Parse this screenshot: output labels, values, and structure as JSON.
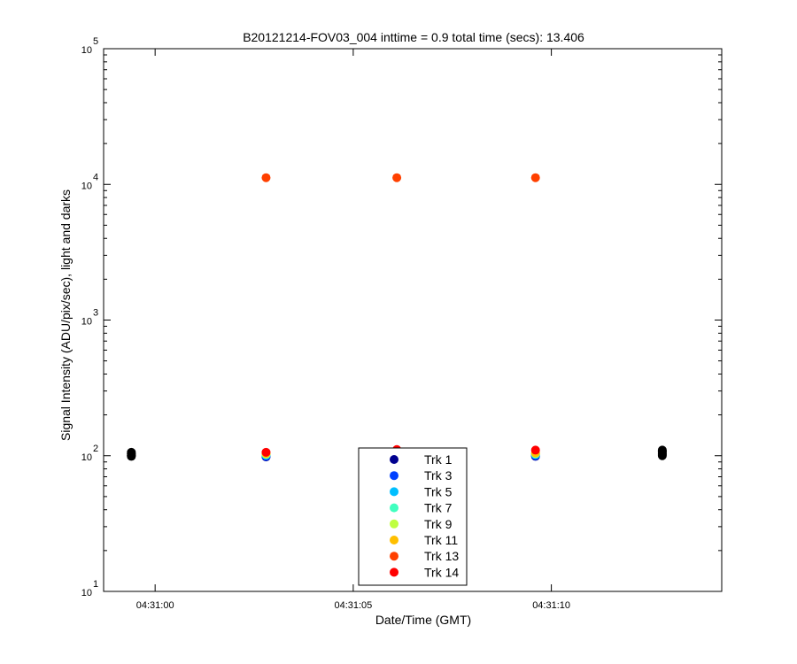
{
  "chart_data": {
    "type": "scatter",
    "title": "B20121214-FOV03_004 inttime = 0.9 total time (secs): 13.406",
    "xlabel": "Date/Time (GMT)",
    "ylabel": "Signal Intensity (ADU/pix/sec), light and darks",
    "y_scale": "log",
    "ylim": [
      10,
      100000
    ],
    "y_ticks": [
      {
        "value": 10,
        "base": "10",
        "exp": "1"
      },
      {
        "value": 100,
        "base": "10",
        "exp": "2"
      },
      {
        "value": 1000,
        "base": "10",
        "exp": "3"
      },
      {
        "value": 10000,
        "base": "10",
        "exp": "4"
      },
      {
        "value": 100000,
        "base": "10",
        "exp": "5"
      }
    ],
    "xlim": [
      "04:30:58.7",
      "04:31:14.3"
    ],
    "x_ticks": [
      "04:31:00",
      "04:31:05",
      "04:31:10"
    ],
    "grid": false,
    "legend_position": "bottom-center",
    "series": [
      {
        "name": "Trk 1",
        "color": "#00008F",
        "points": [
          {
            "x": "04:31:02.8",
            "y": 98
          },
          {
            "x": "04:31:06.1",
            "y": 108
          },
          {
            "x": "04:31:09.6",
            "y": 99
          }
        ]
      },
      {
        "name": "Trk 3",
        "color": "#0040FF",
        "points": [
          {
            "x": "04:31:02.8",
            "y": 99
          },
          {
            "x": "04:31:06.1",
            "y": 108
          },
          {
            "x": "04:31:09.6",
            "y": 100
          }
        ]
      },
      {
        "name": "Trk 5",
        "color": "#00BFFF",
        "points": [
          {
            "x": "04:31:02.8",
            "y": 101
          },
          {
            "x": "04:31:06.1",
            "y": 109
          },
          {
            "x": "04:31:09.6",
            "y": 102
          }
        ]
      },
      {
        "name": "Trk 7",
        "color": "#40FFBF",
        "points": [
          {
            "x": "04:31:02.8",
            "y": 102
          },
          {
            "x": "04:31:06.1",
            "y": 109
          },
          {
            "x": "04:31:09.6",
            "y": 103
          }
        ]
      },
      {
        "name": "Trk 9",
        "color": "#BFFF40",
        "points": [
          {
            "x": "04:31:02.8",
            "y": 103
          },
          {
            "x": "04:31:06.1",
            "y": 110
          },
          {
            "x": "04:31:09.6",
            "y": 104
          }
        ]
      },
      {
        "name": "Trk 11",
        "color": "#FFBF00",
        "points": [
          {
            "x": "04:31:02.8",
            "y": 104
          },
          {
            "x": "04:31:06.1",
            "y": 110
          },
          {
            "x": "04:31:09.6",
            "y": 105
          }
        ]
      },
      {
        "name": "Trk 13",
        "color": "#FF4000",
        "points": [
          {
            "x": "04:31:02.8",
            "y": 11200
          },
          {
            "x": "04:31:06.1",
            "y": 11200
          },
          {
            "x": "04:31:09.6",
            "y": 11200
          }
        ]
      },
      {
        "name": "Trk 14",
        "color": "#FF0000",
        "points": [
          {
            "x": "04:31:02.8",
            "y": 106
          },
          {
            "x": "04:31:06.1",
            "y": 111
          },
          {
            "x": "04:31:09.6",
            "y": 110
          }
        ]
      }
    ],
    "dark_points": {
      "color": "#000000",
      "points": [
        {
          "x": "04:30:59.4",
          "y": 99
        },
        {
          "x": "04:30:59.4",
          "y": 100
        },
        {
          "x": "04:30:59.4",
          "y": 101
        },
        {
          "x": "04:30:59.4",
          "y": 103
        },
        {
          "x": "04:30:59.4",
          "y": 104
        },
        {
          "x": "04:30:59.4",
          "y": 106
        },
        {
          "x": "04:31:12.8",
          "y": 100
        },
        {
          "x": "04:31:12.8",
          "y": 102
        },
        {
          "x": "04:31:12.8",
          "y": 104
        },
        {
          "x": "04:31:12.8",
          "y": 106
        },
        {
          "x": "04:31:12.8",
          "y": 108
        },
        {
          "x": "04:31:12.8",
          "y": 110
        }
      ]
    }
  }
}
